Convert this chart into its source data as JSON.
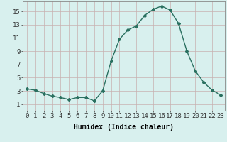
{
  "x": [
    0,
    1,
    2,
    3,
    4,
    5,
    6,
    7,
    8,
    9,
    10,
    11,
    12,
    13,
    14,
    15,
    16,
    17,
    18,
    19,
    20,
    21,
    22,
    23
  ],
  "y": [
    3.3,
    3.1,
    2.6,
    2.2,
    2.0,
    1.7,
    2.0,
    2.0,
    1.5,
    3.0,
    7.5,
    10.8,
    12.2,
    12.8,
    14.4,
    15.3,
    15.8,
    15.2,
    13.2,
    9.0,
    6.0,
    4.3,
    3.1,
    2.4
  ],
  "line_color": "#2a7060",
  "marker": "D",
  "marker_size": 2.0,
  "xlabel": "Humidex (Indice chaleur)",
  "xlim": [
    -0.5,
    23.5
  ],
  "ylim": [
    0,
    16.5
  ],
  "yticks": [
    1,
    3,
    5,
    7,
    9,
    11,
    13,
    15
  ],
  "xticks": [
    0,
    1,
    2,
    3,
    4,
    5,
    6,
    7,
    8,
    9,
    10,
    11,
    12,
    13,
    14,
    15,
    16,
    17,
    18,
    19,
    20,
    21,
    22,
    23
  ],
  "background_color": "#d8f0ee",
  "grid_color_v": "#c8b0b0",
  "grid_color_h": "#c8b0b0",
  "line_width": 1.0,
  "xlabel_fontsize": 7,
  "tick_fontsize": 6.5
}
